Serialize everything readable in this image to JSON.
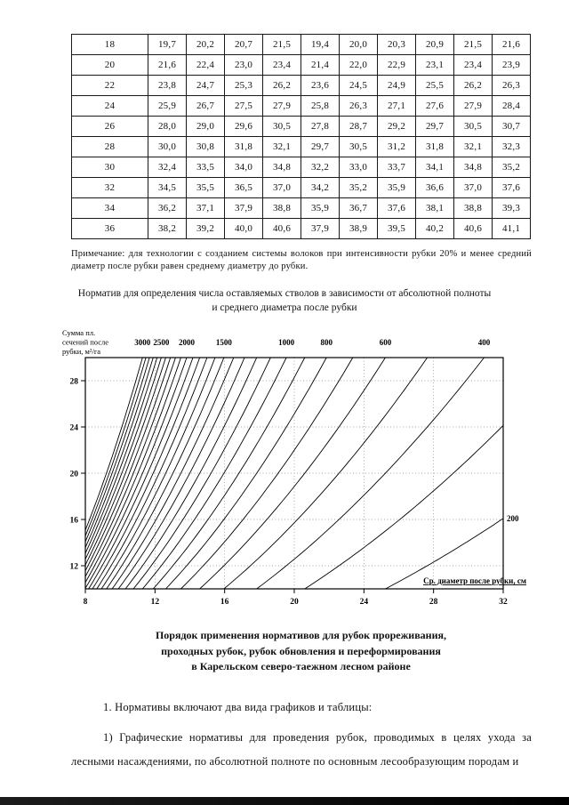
{
  "table": {
    "rows": [
      [
        "18",
        "19,7",
        "20,2",
        "20,7",
        "21,5",
        "19,4",
        "20,0",
        "20,3",
        "20,9",
        "21,5",
        "21,6"
      ],
      [
        "20",
        "21,6",
        "22,4",
        "23,0",
        "23,4",
        "21,4",
        "22,0",
        "22,9",
        "23,1",
        "23,4",
        "23,9"
      ],
      [
        "22",
        "23,8",
        "24,7",
        "25,3",
        "26,2",
        "23,6",
        "24,5",
        "24,9",
        "25,5",
        "26,2",
        "26,3"
      ],
      [
        "24",
        "25,9",
        "26,7",
        "27,5",
        "27,9",
        "25,8",
        "26,3",
        "27,1",
        "27,6",
        "27,9",
        "28,4"
      ],
      [
        "26",
        "28,0",
        "29,0",
        "29,6",
        "30,5",
        "27,8",
        "28,7",
        "29,2",
        "29,7",
        "30,5",
        "30,7"
      ],
      [
        "28",
        "30,0",
        "30,8",
        "31,8",
        "32,1",
        "29,7",
        "30,5",
        "31,2",
        "31,8",
        "32,1",
        "32,3"
      ],
      [
        "30",
        "32,4",
        "33,5",
        "34,0",
        "34,8",
        "32,2",
        "33,0",
        "33,7",
        "34,1",
        "34,8",
        "35,2"
      ],
      [
        "32",
        "34,5",
        "35,5",
        "36,5",
        "37,0",
        "34,2",
        "35,2",
        "35,9",
        "36,6",
        "37,0",
        "37,6"
      ],
      [
        "34",
        "36,2",
        "37,1",
        "37,9",
        "38,8",
        "35,9",
        "36,7",
        "37,6",
        "38,1",
        "38,8",
        "39,3"
      ],
      [
        "36",
        "38,2",
        "39,2",
        "40,0",
        "40,6",
        "37,9",
        "38,9",
        "39,5",
        "40,2",
        "40,6",
        "41,1"
      ]
    ]
  },
  "note": "Примечание: для технологии с созданием системы волоков при интенсивности рубки 20% и менее средний диаметр после рубки равен среднему диаметру до рубки.",
  "chart_data": {
    "type": "line",
    "title": "Норматив для определения числа оставляемых стволов в зависимости от абсолютной полноты и среднего диаметра после рубки",
    "xlabel": "Ср. диаметр после рубки, см",
    "ylabel": "Сумма пл. сечений после рубки, м²/га",
    "ylabel_lines": [
      "Сумма пл.",
      "сечений после",
      "рубки, м²/га"
    ],
    "xlim": [
      8,
      32
    ],
    "ylim": [
      10,
      30
    ],
    "xticks": [
      8,
      12,
      16,
      20,
      24,
      28,
      32
    ],
    "yticks": [
      12,
      16,
      20,
      24,
      28
    ],
    "grid": true,
    "curve_model": "isolines of stem count N per ha: basal area G (m2/ha) = N · π · d² / 40000",
    "curves": [
      3000,
      2900,
      2800,
      2700,
      2600,
      2500,
      2400,
      2300,
      2200,
      2100,
      2000,
      1900,
      1800,
      1700,
      1600,
      1500,
      1400,
      1300,
      1200,
      1100,
      1000,
      900,
      800,
      700,
      600,
      500,
      400,
      300,
      200
    ],
    "labeled_curves": [
      3000,
      2500,
      2000,
      1500,
      1000,
      800,
      600,
      400,
      200
    ]
  },
  "heading": {
    "lines": [
      "Порядок применения нормативов для рубок прореживания,",
      "проходных рубок, рубок обновления и переформирования",
      "в Карельском северо-таежном лесном районе"
    ]
  },
  "paragraphs": {
    "p1": "1. Нормативы включают два вида графиков и таблицы:",
    "p2": "1) Графические нормативы для проведения рубок, проводимых в целях ухода за лесными насаждениями, по абсолютной полноте по основным лесообразующим породам и"
  }
}
